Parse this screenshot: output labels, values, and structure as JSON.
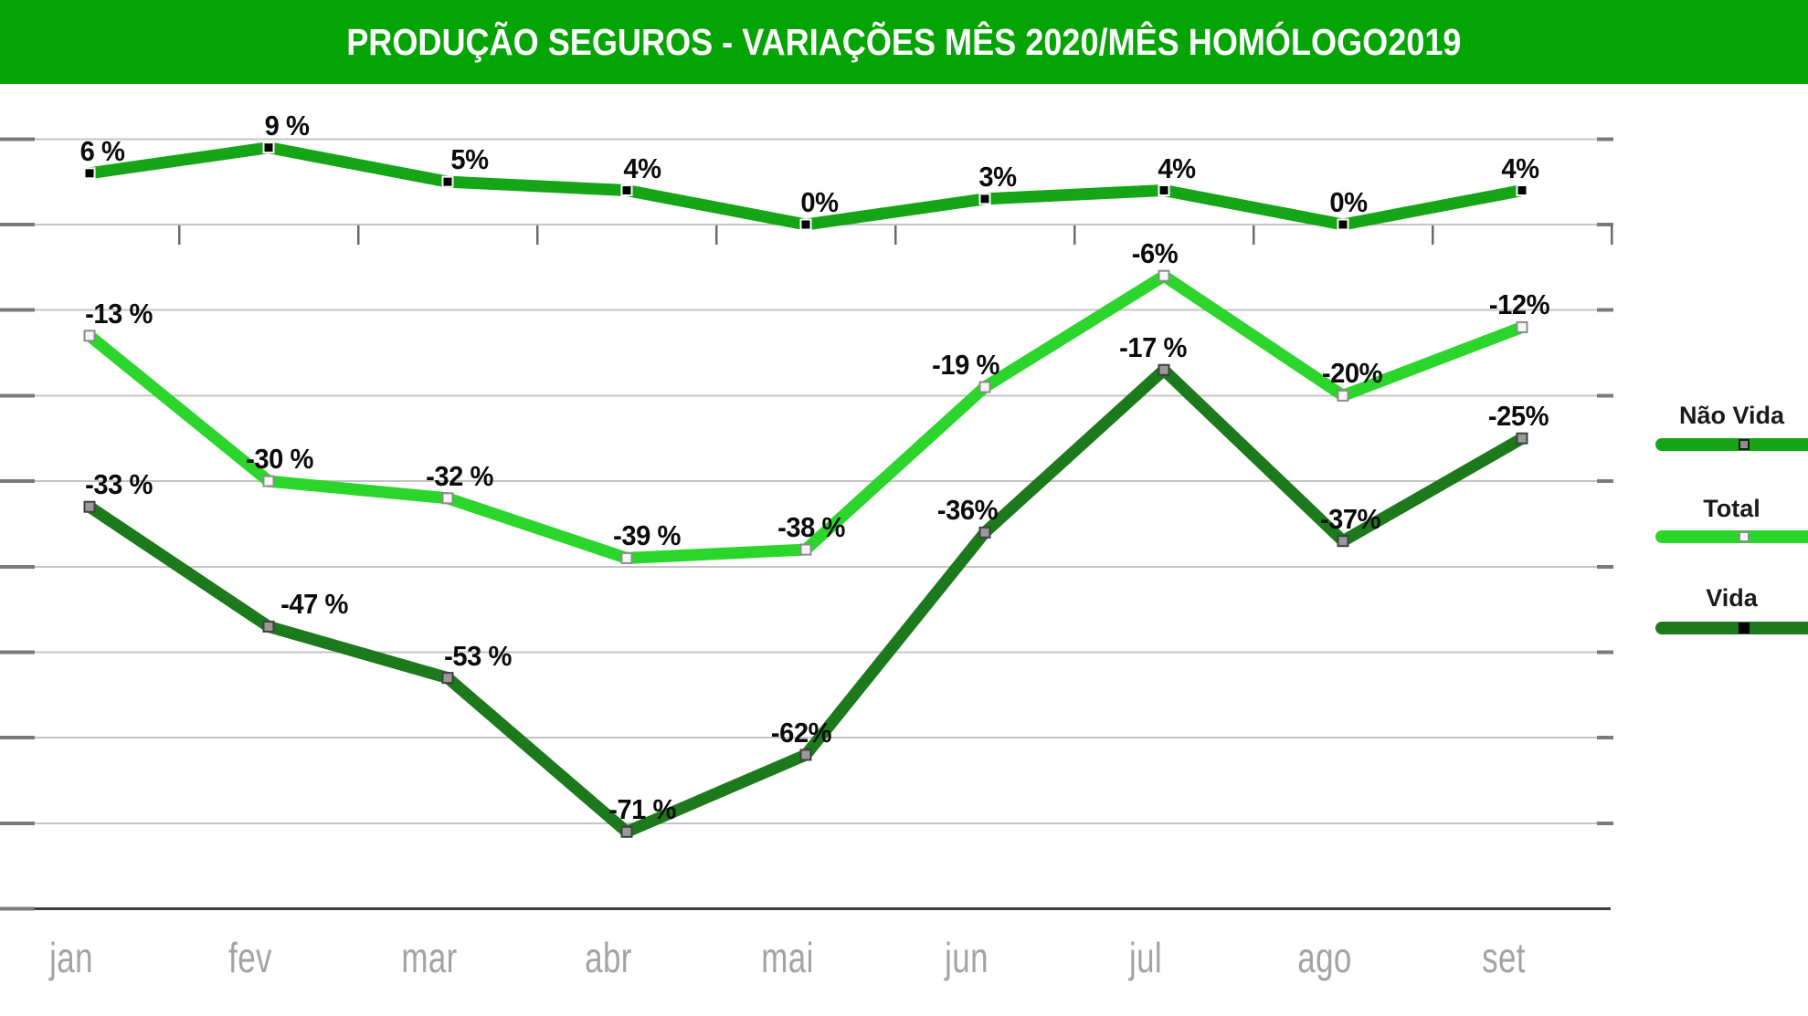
{
  "title": {
    "text": "PRODUÇÃO SEGUROS - VARIAÇÕES MÊS 2020/MÊS HOMÓLOGO2019",
    "background_color": "#04A404",
    "text_color": "#FFFFFF"
  },
  "chart_data": {
    "type": "line",
    "title": "PRODUÇÃO SEGUROS - VARIAÇÕES MÊS 2020/MÊS HOMÓLOGO2019",
    "xlabel": "",
    "ylabel": "",
    "categories": [
      "jan",
      "fev",
      "mar",
      "abr",
      "mai",
      "jun",
      "jul",
      "ago",
      "set"
    ],
    "series": [
      {
        "name": "Não Vida",
        "color": "#16A516",
        "values": [
          6,
          9,
          5,
          4,
          0,
          3,
          4,
          0,
          4
        ],
        "labels": [
          "6 %",
          "9 %",
          "5%",
          "4%",
          "0%",
          "3%",
          "4%",
          "0%",
          "4%"
        ],
        "label_dx": [
          14,
          20,
          24,
          17,
          15,
          14,
          14,
          6,
          -2
        ],
        "marker": {
          "fill": "#000000",
          "border": "#FFFFFF"
        },
        "legend_marker": {
          "fill": "#8F8F8F",
          "border": "#1A1A1A"
        }
      },
      {
        "name": "Total",
        "color": "#2BD52B",
        "values": [
          -13,
          -30,
          -32,
          -39,
          -38,
          -19,
          -6,
          -20,
          -12
        ],
        "labels": [
          "-13 %",
          "-30 %",
          "-32 %",
          "-39 %",
          "-38 %",
          "-19 %",
          "-6%",
          "-20%",
          "-12%"
        ],
        "label_dx": [
          32,
          12,
          13,
          22,
          6,
          -21,
          -10,
          10,
          -3
        ],
        "marker": {
          "fill": "#F7F7F7",
          "border": "#8C8C8C"
        },
        "legend_marker": {
          "fill": "#FFFFFF",
          "border": "#8C8C8C"
        }
      },
      {
        "name": "Vida",
        "color": "#1C791C",
        "values": [
          -33,
          -47,
          -53,
          -71,
          -62,
          -36,
          -17,
          -37,
          -25
        ],
        "labels": [
          "-33 %",
          "-47 %",
          "-53 %",
          "-71 %",
          "-62%",
          "-36%",
          "-17 %",
          "-37%",
          "-25%"
        ],
        "label_dx": [
          32,
          50,
          33,
          17,
          -5,
          -19,
          -12,
          8,
          -4
        ],
        "marker": {
          "fill": "#999999",
          "border": "#3F3F3F"
        },
        "legend_marker": {
          "fill": "#000000",
          "border": "#000000"
        }
      }
    ],
    "ylim": [
      -80,
      10
    ],
    "ytick_step": 10,
    "grid": true,
    "legend_position": "right",
    "legend_labels": [
      "Não Vida",
      "Total",
      "Vida"
    ]
  }
}
